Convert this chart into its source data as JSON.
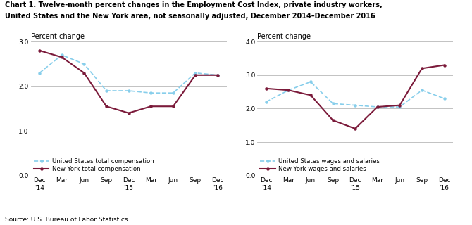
{
  "title_line1": "Chart 1. Twelve-month percent changes in the Employment Cost Index, private industry workers,",
  "title_line2": "United States and the New York area, not seasonally adjusted, December 2014–December 2016",
  "source": "Source: U.S. Bureau of Labor Statistics.",
  "x_labels": [
    "Dec\n'14",
    "Mar",
    "Jun",
    "Sep",
    "Dec\n'15",
    "Mar",
    "Jun",
    "Sep",
    "Dec\n'16"
  ],
  "left": {
    "ylabel": "Percent change",
    "ylim": [
      0.0,
      3.0
    ],
    "yticks": [
      0.0,
      1.0,
      2.0,
      3.0
    ],
    "us_data": [
      2.3,
      2.7,
      2.5,
      1.9,
      1.9,
      1.85,
      1.85,
      2.3,
      2.25
    ],
    "ny_data": [
      2.8,
      2.65,
      2.3,
      1.55,
      1.4,
      1.55,
      1.55,
      2.25,
      2.25
    ],
    "legend1": "United States total compensation",
    "legend2": "New York total compensation"
  },
  "right": {
    "ylabel": "Percent change",
    "ylim": [
      0.0,
      4.0
    ],
    "yticks": [
      0.0,
      1.0,
      2.0,
      3.0,
      4.0
    ],
    "us_data": [
      2.2,
      2.55,
      2.8,
      2.15,
      2.1,
      2.05,
      2.05,
      2.55,
      2.3
    ],
    "ny_data": [
      2.6,
      2.55,
      2.4,
      1.65,
      1.4,
      2.05,
      2.1,
      3.2,
      3.3
    ],
    "legend1": "United States wages and salaries",
    "legend2": "New York wages and salaries"
  },
  "us_color": "#87CEEB",
  "ny_color": "#7B1A3A",
  "grid_color": "#b8b8b8",
  "bg_color": "#ffffff"
}
